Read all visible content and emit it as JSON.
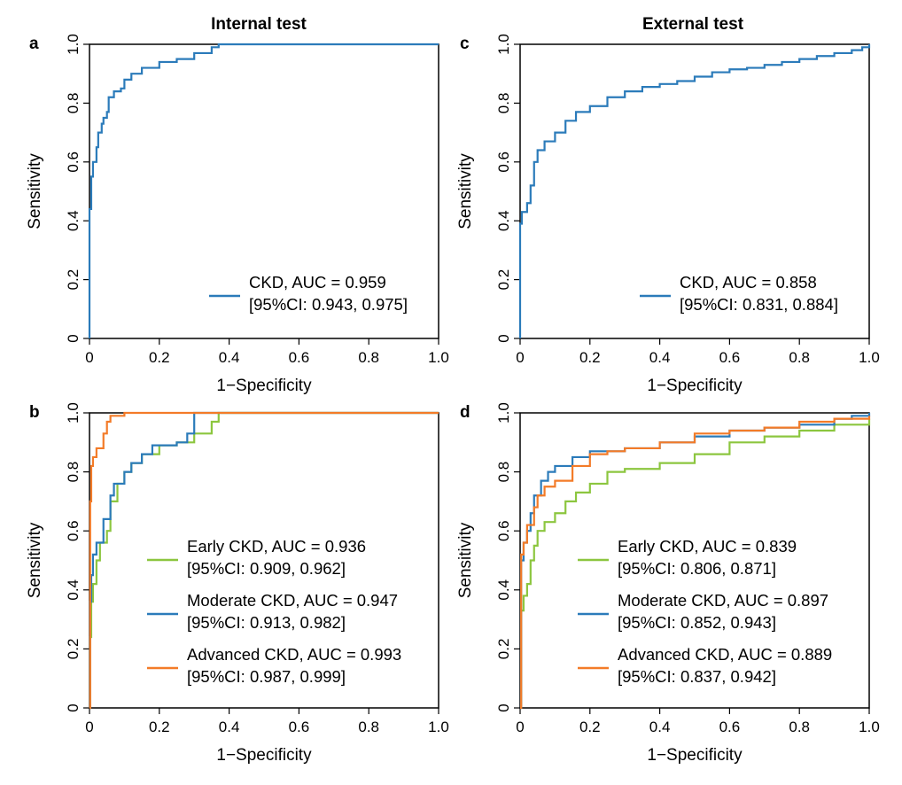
{
  "figure": {
    "col_titles": [
      "Internal test",
      "External test"
    ],
    "colors": {
      "ckd": "#2B7BBA",
      "early": "#8CC63F",
      "moderate": "#2B7BBA",
      "advanced": "#F37B28",
      "axis": "#000000"
    }
  },
  "chart_data": [
    {
      "panel_label": "a",
      "type": "line",
      "title": "Internal test",
      "xlabel": "1−Specificity",
      "ylabel": "Sensitivity",
      "xlim": [
        0,
        1
      ],
      "ylim": [
        0,
        1
      ],
      "x_ticks": [
        "0",
        "0.2",
        "0.4",
        "0.6",
        "0.8",
        "1.0"
      ],
      "y_ticks": [
        "0",
        "0.2",
        "0.4",
        "0.6",
        "0.8",
        "1.0"
      ],
      "legend_position": "bottom-right",
      "series": [
        {
          "name": "CKD, AUC = 0.959",
          "ci": "[95%CI: 0.943, 0.975]",
          "color": "#2B7BBA",
          "points": [
            [
              0,
              0
            ],
            [
              0,
              0.44
            ],
            [
              0.005,
              0.55
            ],
            [
              0.01,
              0.6
            ],
            [
              0.02,
              0.65
            ],
            [
              0.025,
              0.7
            ],
            [
              0.035,
              0.73
            ],
            [
              0.04,
              0.75
            ],
            [
              0.05,
              0.77
            ],
            [
              0.055,
              0.82
            ],
            [
              0.07,
              0.84
            ],
            [
              0.09,
              0.85
            ],
            [
              0.1,
              0.88
            ],
            [
              0.12,
              0.9
            ],
            [
              0.15,
              0.92
            ],
            [
              0.2,
              0.94
            ],
            [
              0.25,
              0.95
            ],
            [
              0.3,
              0.97
            ],
            [
              0.35,
              0.99
            ],
            [
              0.37,
              1.0
            ],
            [
              1.0,
              1.0
            ]
          ]
        }
      ]
    },
    {
      "panel_label": "b",
      "type": "line",
      "title": "",
      "xlabel": "1−Specificity",
      "ylabel": "Sensitivity",
      "xlim": [
        0,
        1
      ],
      "ylim": [
        0,
        1
      ],
      "x_ticks": [
        "0",
        "0.2",
        "0.4",
        "0.6",
        "0.8",
        "1.0"
      ],
      "y_ticks": [
        "0",
        "0.2",
        "0.4",
        "0.6",
        "0.8",
        "1.0"
      ],
      "legend_position": "bottom-right",
      "series": [
        {
          "name": "Early CKD, AUC = 0.936",
          "ci": "[95%CI: 0.909, 0.962]",
          "color": "#8CC63F",
          "points": [
            [
              0,
              0
            ],
            [
              0.002,
              0.24
            ],
            [
              0.005,
              0.36
            ],
            [
              0.01,
              0.42
            ],
            [
              0.02,
              0.5
            ],
            [
              0.03,
              0.56
            ],
            [
              0.05,
              0.6
            ],
            [
              0.06,
              0.7
            ],
            [
              0.08,
              0.76
            ],
            [
              0.1,
              0.8
            ],
            [
              0.12,
              0.83
            ],
            [
              0.15,
              0.86
            ],
            [
              0.2,
              0.89
            ],
            [
              0.25,
              0.9
            ],
            [
              0.3,
              0.93
            ],
            [
              0.35,
              0.97
            ],
            [
              0.37,
              1.0
            ],
            [
              1.0,
              1.0
            ]
          ]
        },
        {
          "name": "Moderate CKD, AUC = 0.947",
          "ci": "[95%CI: 0.913, 0.982]",
          "color": "#2B7BBA",
          "points": [
            [
              0,
              0
            ],
            [
              0.002,
              0.36
            ],
            [
              0.005,
              0.45
            ],
            [
              0.01,
              0.52
            ],
            [
              0.02,
              0.56
            ],
            [
              0.04,
              0.64
            ],
            [
              0.06,
              0.72
            ],
            [
              0.07,
              0.76
            ],
            [
              0.1,
              0.8
            ],
            [
              0.12,
              0.83
            ],
            [
              0.15,
              0.86
            ],
            [
              0.18,
              0.89
            ],
            [
              0.25,
              0.9
            ],
            [
              0.28,
              0.93
            ],
            [
              0.3,
              1.0
            ],
            [
              1.0,
              1.0
            ]
          ]
        },
        {
          "name": "Advanced CKD, AUC = 0.993",
          "ci": "[95%CI: 0.987, 0.999]",
          "color": "#F37B28",
          "points": [
            [
              0,
              0
            ],
            [
              0.002,
              0.7
            ],
            [
              0.005,
              0.82
            ],
            [
              0.01,
              0.85
            ],
            [
              0.02,
              0.88
            ],
            [
              0.04,
              0.93
            ],
            [
              0.05,
              0.97
            ],
            [
              0.06,
              0.99
            ],
            [
              0.1,
              1.0
            ],
            [
              1.0,
              1.0
            ]
          ]
        }
      ]
    },
    {
      "panel_label": "c",
      "type": "line",
      "title": "External test",
      "xlabel": "1−Specificity",
      "ylabel": "Sensitivity",
      "xlim": [
        0,
        1
      ],
      "ylim": [
        0,
        1
      ],
      "x_ticks": [
        "0",
        "0.2",
        "0.4",
        "0.6",
        "0.8",
        "1.0"
      ],
      "y_ticks": [
        "0",
        "0.2",
        "0.4",
        "0.6",
        "0.8",
        "1.0"
      ],
      "legend_position": "bottom-right",
      "series": [
        {
          "name": "CKD, AUC = 0.858",
          "ci": "[95%CI: 0.831, 0.884]",
          "color": "#2B7BBA",
          "points": [
            [
              0,
              0
            ],
            [
              0,
              0.39
            ],
            [
              0.005,
              0.43
            ],
            [
              0.02,
              0.46
            ],
            [
              0.03,
              0.52
            ],
            [
              0.04,
              0.6
            ],
            [
              0.05,
              0.64
            ],
            [
              0.07,
              0.67
            ],
            [
              0.1,
              0.7
            ],
            [
              0.13,
              0.74
            ],
            [
              0.16,
              0.77
            ],
            [
              0.2,
              0.79
            ],
            [
              0.25,
              0.82
            ],
            [
              0.3,
              0.84
            ],
            [
              0.35,
              0.855
            ],
            [
              0.4,
              0.865
            ],
            [
              0.45,
              0.875
            ],
            [
              0.5,
              0.89
            ],
            [
              0.55,
              0.905
            ],
            [
              0.6,
              0.915
            ],
            [
              0.65,
              0.92
            ],
            [
              0.7,
              0.93
            ],
            [
              0.75,
              0.94
            ],
            [
              0.8,
              0.95
            ],
            [
              0.85,
              0.96
            ],
            [
              0.9,
              0.97
            ],
            [
              0.95,
              0.98
            ],
            [
              0.98,
              0.99
            ],
            [
              1.0,
              1.0
            ]
          ]
        }
      ]
    },
    {
      "panel_label": "d",
      "type": "line",
      "title": "",
      "xlabel": "1−Specificity",
      "ylabel": "Sensitivity",
      "xlim": [
        0,
        1
      ],
      "ylim": [
        0,
        1
      ],
      "x_ticks": [
        "0",
        "0.2",
        "0.4",
        "0.6",
        "0.8",
        "1.0"
      ],
      "y_ticks": [
        "0",
        "0.2",
        "0.4",
        "0.6",
        "0.8",
        "1.0"
      ],
      "legend_position": "bottom-right",
      "series": [
        {
          "name": "Early CKD, AUC = 0.839",
          "ci": "[95%CI: 0.806, 0.871]",
          "color": "#8CC63F",
          "points": [
            [
              0,
              0
            ],
            [
              0.003,
              0.33
            ],
            [
              0.01,
              0.38
            ],
            [
              0.02,
              0.42
            ],
            [
              0.03,
              0.5
            ],
            [
              0.04,
              0.55
            ],
            [
              0.05,
              0.6
            ],
            [
              0.07,
              0.63
            ],
            [
              0.1,
              0.66
            ],
            [
              0.13,
              0.7
            ],
            [
              0.16,
              0.73
            ],
            [
              0.2,
              0.76
            ],
            [
              0.25,
              0.8
            ],
            [
              0.3,
              0.81
            ],
            [
              0.4,
              0.83
            ],
            [
              0.5,
              0.86
            ],
            [
              0.6,
              0.9
            ],
            [
              0.7,
              0.92
            ],
            [
              0.8,
              0.94
            ],
            [
              0.9,
              0.96
            ],
            [
              1.0,
              0.98
            ]
          ]
        },
        {
          "name": "Moderate CKD, AUC = 0.897",
          "ci": "[95%CI: 0.852, 0.943]",
          "color": "#2B7BBA",
          "points": [
            [
              0,
              0
            ],
            [
              0.003,
              0.5
            ],
            [
              0.01,
              0.56
            ],
            [
              0.02,
              0.6
            ],
            [
              0.03,
              0.66
            ],
            [
              0.04,
              0.72
            ],
            [
              0.06,
              0.77
            ],
            [
              0.08,
              0.8
            ],
            [
              0.1,
              0.82
            ],
            [
              0.15,
              0.85
            ],
            [
              0.2,
              0.87
            ],
            [
              0.3,
              0.88
            ],
            [
              0.4,
              0.9
            ],
            [
              0.5,
              0.92
            ],
            [
              0.6,
              0.94
            ],
            [
              0.7,
              0.95
            ],
            [
              0.8,
              0.96
            ],
            [
              0.9,
              0.98
            ],
            [
              0.95,
              0.99
            ],
            [
              1.0,
              1.0
            ]
          ]
        },
        {
          "name": "Advanced CKD, AUC = 0.889",
          "ci": "[95%CI: 0.837, 0.942]",
          "color": "#F37B28",
          "points": [
            [
              0,
              0
            ],
            [
              0.003,
              0.52
            ],
            [
              0.01,
              0.56
            ],
            [
              0.02,
              0.62
            ],
            [
              0.04,
              0.68
            ],
            [
              0.05,
              0.72
            ],
            [
              0.07,
              0.75
            ],
            [
              0.1,
              0.77
            ],
            [
              0.15,
              0.82
            ],
            [
              0.2,
              0.86
            ],
            [
              0.25,
              0.87
            ],
            [
              0.3,
              0.88
            ],
            [
              0.4,
              0.9
            ],
            [
              0.5,
              0.93
            ],
            [
              0.6,
              0.94
            ],
            [
              0.7,
              0.95
            ],
            [
              0.8,
              0.97
            ],
            [
              0.9,
              0.98
            ],
            [
              1.0,
              0.99
            ]
          ]
        }
      ]
    }
  ]
}
